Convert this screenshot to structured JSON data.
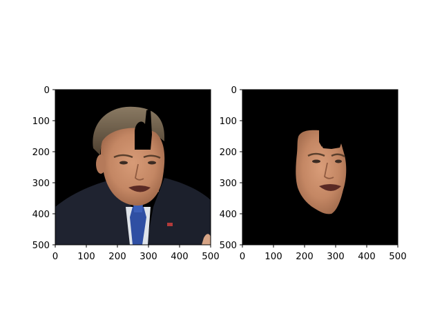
{
  "chart_data": [
    {
      "type": "image",
      "panel": "left",
      "content": "face photo with a black rectangular occlusion patch on the forehead",
      "x_ticks": [
        0,
        100,
        200,
        300,
        400,
        500
      ],
      "y_ticks": [
        0,
        100,
        200,
        300,
        400,
        500
      ],
      "xlim": [
        0,
        500
      ],
      "ylim": [
        500,
        0
      ],
      "occlusion_patch": {
        "x": [
          250,
          305
        ],
        "y": [
          110,
          190
        ]
      },
      "colors": {
        "background": "#000000",
        "jacket": "#1f2330",
        "shirt": "#e9edf2",
        "tie": "#2f4fa3",
        "skin": "#c48764",
        "hair": "#6b5a44",
        "occlusion": "#000000"
      }
    },
    {
      "type": "image",
      "panel": "right",
      "content": "segmented face region only (skin mask) on black background",
      "x_ticks": [
        0,
        100,
        200,
        300,
        400,
        500
      ],
      "y_ticks": [
        0,
        100,
        200,
        300,
        400,
        500
      ],
      "xlim": [
        0,
        500
      ],
      "ylim": [
        500,
        0
      ],
      "colors": {
        "background": "#000000",
        "skin": "#c48764"
      }
    }
  ]
}
